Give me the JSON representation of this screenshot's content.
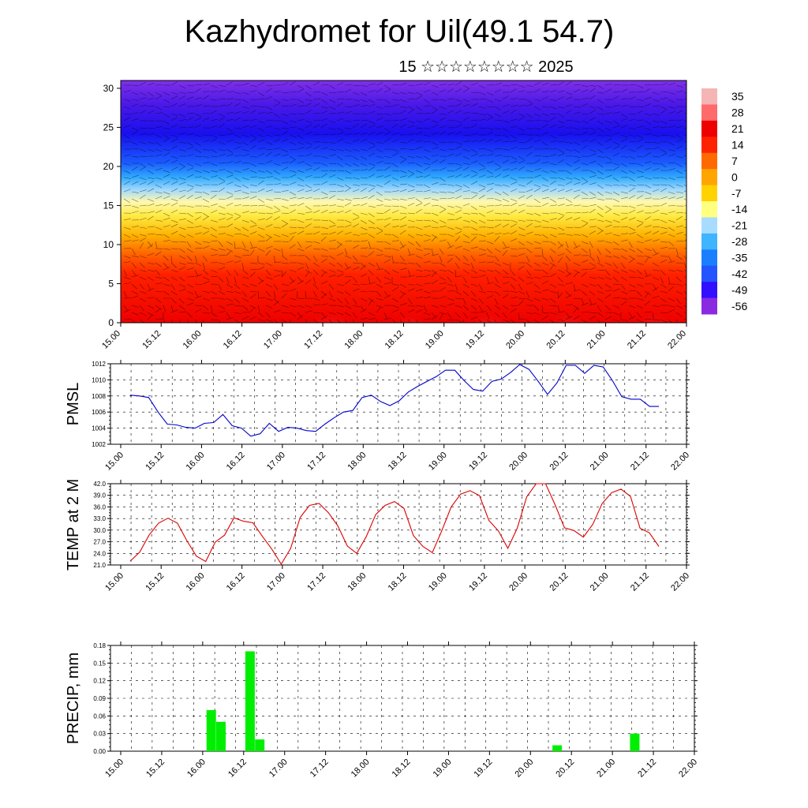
{
  "header": {
    "title": "Kazhydromet for Uil(49.1 54.7)",
    "date": "15 ☆☆☆☆☆☆☆☆ 2025"
  },
  "time_labels": [
    "15.00",
    "15.12",
    "16.00",
    "16.12",
    "17.00",
    "17.12",
    "18.00",
    "18.12",
    "19.00",
    "19.12",
    "20.00",
    "20.12",
    "21.00",
    "21.12",
    "22.00"
  ],
  "chart_data": [
    {
      "type": "heatmap",
      "title": "",
      "xlabel": "",
      "ylabel": "",
      "y_ticks": [
        "0",
        "5",
        "10",
        "15",
        "20",
        "25",
        "30"
      ],
      "ylim": [
        0,
        31
      ],
      "colorbar": {
        "labels": [
          "35",
          "28",
          "21",
          "14",
          "7",
          "0",
          "-7",
          "-14",
          "-21",
          "-28",
          "-35",
          "-42",
          "-49",
          "-56"
        ],
        "colors": [
          "#f5b5b5",
          "#ff6b6b",
          "#ee0000",
          "#ff2200",
          "#ff6a00",
          "#ffa500",
          "#ffd200",
          "#ffff80",
          "#a8dcff",
          "#3fb4ff",
          "#1a7fff",
          "#2255ff",
          "#3010ff",
          "#8a2be2"
        ]
      },
      "overlay": "wind-barbs"
    },
    {
      "type": "line",
      "ylabel": "PMSL",
      "y_ticks": [
        "1002",
        "1004",
        "1006",
        "1008",
        "1010",
        "1012"
      ],
      "ylim": [
        1002,
        1012
      ],
      "color": "#0000cc",
      "series": [
        {
          "values": [
            1008.1,
            1008.0,
            1007.8,
            1006.0,
            1004.5,
            1004.4,
            1004.1,
            1004.0,
            1004.6,
            1004.7,
            1005.7,
            1004.3,
            1004.0,
            1003.0,
            1003.3,
            1004.6,
            1003.6,
            1004.1,
            1004.0,
            1003.7,
            1003.6,
            1004.5,
            1005.3,
            1006.0,
            1006.2,
            1007.8,
            1008.1,
            1007.3,
            1006.8,
            1007.4,
            1008.5,
            1009.2,
            1009.8,
            1010.4,
            1011.2,
            1011.2,
            1009.9,
            1008.8,
            1008.6,
            1009.8,
            1010.1,
            1010.9,
            1011.9,
            1011.3,
            1009.8,
            1008.2,
            1009.6,
            1011.8,
            1011.8,
            1010.8,
            1011.8,
            1011.6,
            1009.9,
            1007.9,
            1007.6,
            1007.6,
            1006.7,
            1006.7
          ]
        }
      ]
    },
    {
      "type": "line",
      "ylabel": "TEMP at 2 M",
      "y_ticks": [
        "21.0",
        "24.0",
        "27.0",
        "30.0",
        "33.0",
        "36.0",
        "39.0",
        "42.0"
      ],
      "ylim": [
        21,
        42
      ],
      "color": "#dd0000",
      "series": [
        {
          "values": [
            22.0,
            24.3,
            28.7,
            31.8,
            33.1,
            31.8,
            27.3,
            23.3,
            21.9,
            26.9,
            28.7,
            33.2,
            32.3,
            31.9,
            28.4,
            25.1,
            21.2,
            25.3,
            33.3,
            36.4,
            36.9,
            34.5,
            31.1,
            25.9,
            24.0,
            28.3,
            34.0,
            36.4,
            37.4,
            35.6,
            28.6,
            25.8,
            24.2,
            29.8,
            36.0,
            39.3,
            40.2,
            38.9,
            32.5,
            29.8,
            25.3,
            30.5,
            38.6,
            42.2,
            42.3,
            36.6,
            30.6,
            29.9,
            28.2,
            31.5,
            36.9,
            39.7,
            40.6,
            38.7,
            30.5,
            29.3,
            25.8
          ]
        }
      ]
    },
    {
      "type": "bar",
      "ylabel": "PRECIP, mm",
      "y_ticks": [
        "0.00",
        "0.03",
        "0.06",
        "0.09",
        "0.12",
        "0.15",
        "0.18"
      ],
      "ylim": [
        0,
        0.18
      ],
      "color": "#00ee00",
      "x": [
        16.12,
        16.24,
        16.6,
        16.72,
        20.4,
        21.36
      ],
      "values": [
        0.07,
        0.05,
        0.17,
        0.02,
        0.01,
        0.03
      ]
    }
  ]
}
